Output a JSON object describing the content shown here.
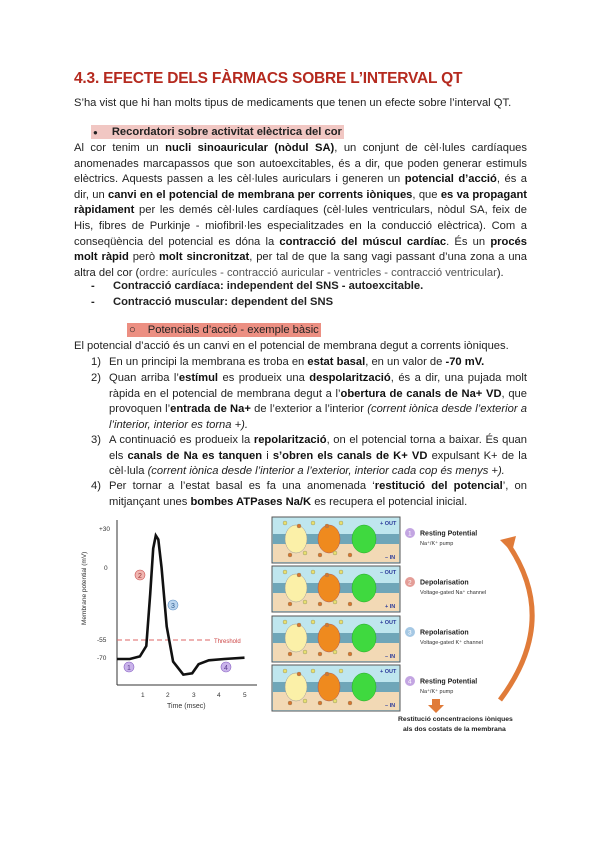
{
  "heading": "4.3. EFECTE DELS FÀRMACS SOBRE L’INTERVAL QT",
  "intro": "S’ha vist que hi han molts tipus de medicaments que tenen un efecte sobre l’interval QT.",
  "section1": {
    "bullet": "●",
    "label": "Recordatori sobre activitat elèctrica del cor",
    "paragraph": [
      {
        "t": "Al cor tenim un "
      },
      {
        "t": "nucli sinoauricular (nòdul SA)",
        "b": true
      },
      {
        "t": ", un conjunt de cèl·lules cardíaques anomenades marcapassos que son autoexcitables, és a dir, que poden generar estimuls elèctrics. Aquests passen a les cèl·lules auriculars i generen un "
      },
      {
        "t": "potencial d’acció",
        "b": true
      },
      {
        "t": ", és a dir, un "
      },
      {
        "t": "canvi en el potencial de membrana per corrents iòniques",
        "b": true
      },
      {
        "t": ", que "
      },
      {
        "t": "es va propagant ràpidament",
        "b": true
      },
      {
        "t": " per les demés cèl·lules cardíaques (cèl·lules ventriculars, nòdul SA, feix de His, fibres de Purkinje - miofibril·les especialitzades en la conducció elèctrica). Com a conseqüència del potencial es dóna la "
      },
      {
        "t": "contracció del múscul cardíac",
        "b": true
      },
      {
        "t": ". És un "
      },
      {
        "t": "procés molt ràpid",
        "b": true
      },
      {
        "t": " però "
      },
      {
        "t": "molt sincronitzat",
        "b": true
      },
      {
        "t": ", per tal de que la sang vagi passant d’una zona a una altra del cor ("
      },
      {
        "t": "ordre: aurícules - contracció auricular - ventricles - contracció ventricular",
        "g": true
      },
      {
        "t": ")."
      }
    ],
    "dashes": [
      "Contracció cardíaca: independent del SNS - autoexcitable.",
      "Contracció muscular: dependent del SNS"
    ]
  },
  "section2": {
    "bullet": "○",
    "label": "Potencials d’acció - exemple bàsic",
    "lead": "El potencial d’acció és un canvi en el potencial de membrana degut a corrents iòniques.",
    "steps": [
      {
        "n": "1)",
        "segs": [
          {
            "t": "En un principi la membrana es troba en "
          },
          {
            "t": "estat basal",
            "b": true
          },
          {
            "t": ", en un valor de "
          },
          {
            "t": "-70 mV.",
            "b": true
          }
        ]
      },
      {
        "n": "2)",
        "segs": [
          {
            "t": "Quan arriba l’"
          },
          {
            "t": "estímul",
            "b": true
          },
          {
            "t": " es produeix una "
          },
          {
            "t": "despolarització",
            "b": true
          },
          {
            "t": ", és a dir, una pujada molt ràpida en el potencial de membrana degut a l’"
          },
          {
            "t": "obertura de canals de Na+ VD",
            "b": true
          },
          {
            "t": ", que provoquen l’"
          },
          {
            "t": "entrada de Na+",
            "b": true
          },
          {
            "t": " de l’exterior a l’interior "
          },
          {
            "t": "(corrent iònica desde l’exterior a l’interior, interior es torna +).",
            "i": true
          }
        ]
      },
      {
        "n": "3)",
        "segs": [
          {
            "t": "A continuació es produeix la "
          },
          {
            "t": "repolarització",
            "b": true
          },
          {
            "t": ", on el potencial torna a baixar. És quan els "
          },
          {
            "t": "canals de Na es tanquen",
            "b": true
          },
          {
            "t": " i "
          },
          {
            "t": "s’obren els canals de K+ VD",
            "b": true
          },
          {
            "t": " expulsant K+ de la cèl·lula "
          },
          {
            "t": "(corrent iònica desde l’interior a l’exterior, interior cada cop és menys +).",
            "i": true
          }
        ]
      },
      {
        "n": "4)",
        "segs": [
          {
            "t": "Per tornar a l’estat basal es fa una anomenada ‘"
          },
          {
            "t": "restitució del potencial",
            "b": true
          },
          {
            "t": "’, on mitjançant unes "
          },
          {
            "t": "bombes ATPases Na/K",
            "b": true
          },
          {
            "t": " es recupera el potencial inicial."
          }
        ]
      }
    ]
  },
  "figure": {
    "graph": {
      "ylabel": "Membrane potential (mV)",
      "xlabel": "Time (msec)",
      "yticks": [
        "+30",
        "0",
        "-55",
        "-70"
      ],
      "xticks": [
        "1",
        "2",
        "3",
        "4",
        "5"
      ],
      "threshold_label": "Threshold",
      "markers": [
        "1",
        "2",
        "3",
        "4"
      ]
    },
    "panels": [
      {
        "num": "1",
        "title": "Resting Potential",
        "sub": "Na⁺/K⁺ pump",
        "out": "+ OUT",
        "in": "– IN",
        "color": "#a97fd6"
      },
      {
        "num": "2",
        "title": "Depolarisation",
        "sub": "Voltage-gated Na⁺ channel",
        "out": "– OUT",
        "in": "+ IN",
        "color": "#d9736b"
      },
      {
        "num": "3",
        "title": "Repolarisation",
        "sub": "Voltage-gated K⁺ channel",
        "out": "+ OUT",
        "in": "– IN",
        "color": "#7fb0d9"
      },
      {
        "num": "4",
        "title": "Resting Potential",
        "sub": "Na⁺/K⁺ pump",
        "out": "+ OUT",
        "in": "– IN",
        "color": "#a97fd6"
      }
    ],
    "caption": [
      "Restitució concentracions iòniques",
      "als dos costats de la membrana"
    ]
  },
  "colors": {
    "heading": "#b52a1f",
    "highlight1": "#f1c7c3",
    "highlight2": "#ec8f82",
    "arrow": "#e07b39"
  }
}
